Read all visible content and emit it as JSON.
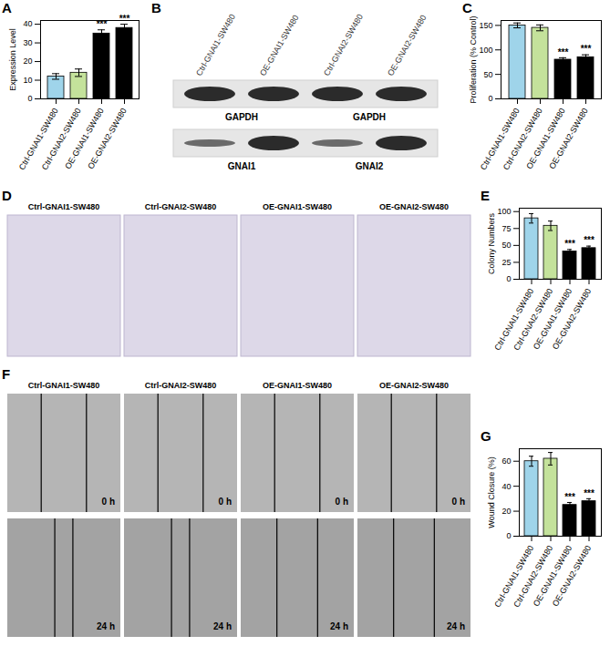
{
  "chart_data": [
    {
      "panel": "A",
      "type": "bar",
      "ylabel": "Expression Level",
      "categories": [
        "Ctrl-GNAI1-SW480",
        "Ctrl-GNAI2-SW480",
        "OE-GNAI1-SW480",
        "OE-GNAI2-SW480"
      ],
      "values": [
        12,
        14,
        35,
        38
      ],
      "errors": [
        1.5,
        2,
        2,
        2
      ],
      "colors": [
        "#9fd4ea",
        "#c4e29b",
        "#000000",
        "#000000"
      ],
      "significance": [
        null,
        null,
        "***",
        "***"
      ],
      "ylim": [
        0,
        42
      ],
      "yticks": [
        0,
        10,
        20,
        30,
        40
      ]
    },
    {
      "panel": "C",
      "type": "bar",
      "ylabel": "Proliferation (% Control)",
      "categories": [
        "Ctrl-GNAI1-SW480",
        "Ctrl-GNAI2-SW480",
        "OE-GNAI1-SW480",
        "OE-GNAI2-SW480"
      ],
      "values": [
        150,
        145,
        80,
        85
      ],
      "errors": [
        5,
        6,
        4,
        5
      ],
      "colors": [
        "#9fd4ea",
        "#c4e29b",
        "#000000",
        "#000000"
      ],
      "significance": [
        null,
        null,
        "***",
        "***"
      ],
      "ylim": [
        0,
        160
      ],
      "yticks": [
        0,
        50,
        100,
        150
      ]
    },
    {
      "panel": "E",
      "type": "bar",
      "ylabel": "Colony Numbers",
      "categories": [
        "Ctrl-GNAI1-SW480",
        "Ctrl-GNAI2-SW480",
        "OE-GNAI1-SW480",
        "OE-GNAI2-SW480"
      ],
      "values": [
        90,
        79,
        41,
        46
      ],
      "errors": [
        7,
        7,
        3,
        3
      ],
      "colors": [
        "#9fd4ea",
        "#c4e29b",
        "#000000",
        "#000000"
      ],
      "significance": [
        null,
        null,
        "***",
        "***"
      ],
      "ylim": [
        0,
        105
      ],
      "yticks": [
        0,
        25,
        50,
        75,
        100
      ]
    },
    {
      "panel": "G",
      "type": "bar",
      "ylabel": "Wound Closure (%)",
      "categories": [
        "Ctrl-GNAI1-SW480",
        "Ctrl-GNAI2-SW480",
        "OE-GNAI1-SW480",
        "OE-GNAI2-SW480"
      ],
      "values": [
        60,
        62,
        25,
        28
      ],
      "errors": [
        4,
        5,
        2,
        2
      ],
      "colors": [
        "#9fd4ea",
        "#c4e29b",
        "#000000",
        "#000000"
      ],
      "significance": [
        null,
        null,
        "***",
        "***"
      ],
      "ylim": [
        0,
        70
      ],
      "yticks": [
        0,
        20,
        40,
        60
      ]
    }
  ],
  "blot": {
    "panel": "B",
    "lanes": [
      "Ctrl-GNAI1-SW480",
      "OE-GNAI1-SW480",
      "Ctrl-GNAI2-SW480",
      "OE-GNAI2-SW480"
    ],
    "strips": [
      {
        "labels": [
          "GAPDH",
          "GAPDH"
        ]
      },
      {
        "labels": [
          "GNAI1",
          "GNAI2"
        ]
      }
    ]
  },
  "colony": {
    "panel": "D",
    "titles": [
      "Ctrl-GNAI1-SW480",
      "Ctrl-GNAI2-SW480",
      "OE-GNAI1-SW480",
      "OE-GNAI2-SW480"
    ]
  },
  "wound": {
    "panel": "F",
    "titles": [
      "Ctrl-GNAI1-SW480",
      "Ctrl-GNAI2-SW480",
      "OE-GNAI1-SW480",
      "OE-GNAI2-SW480"
    ],
    "times": [
      "0 h",
      "24 h"
    ]
  }
}
